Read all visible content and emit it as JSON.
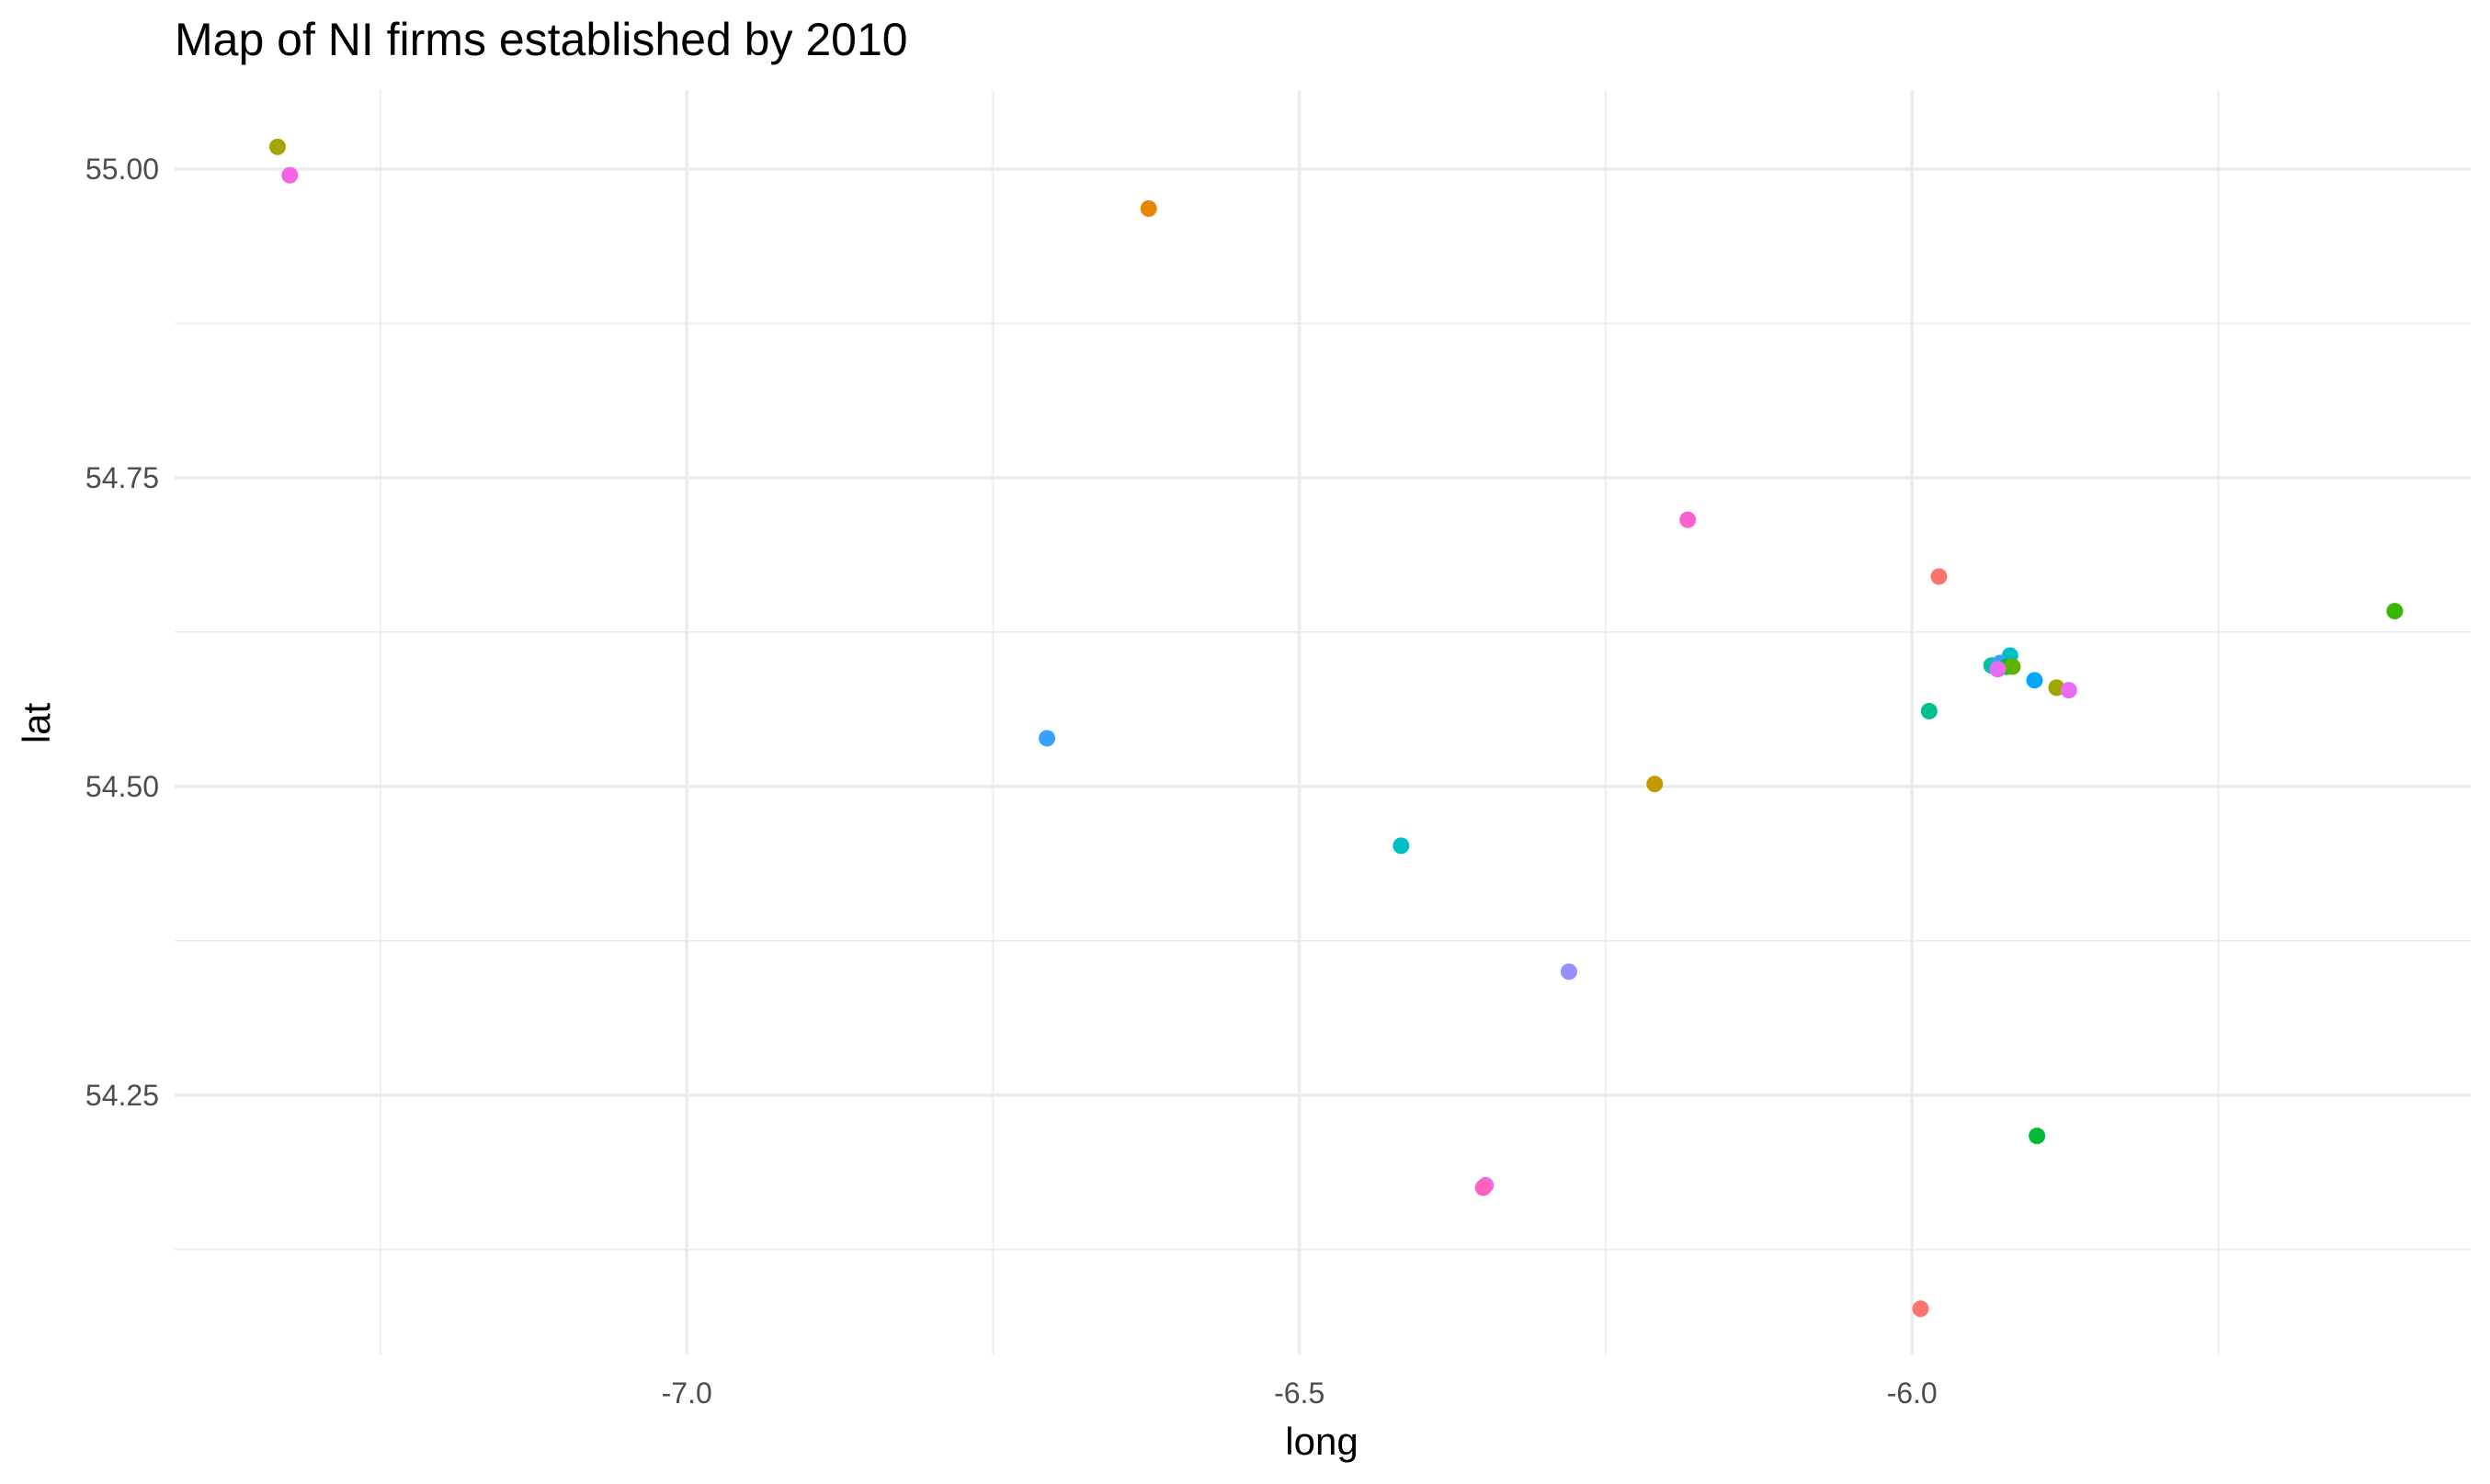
{
  "chart_data": {
    "type": "scatter",
    "title": "Map of NI firms established by 2010",
    "xlabel": "long",
    "ylabel": "lat",
    "xlim": [
      -7.418,
      -5.544
    ],
    "ylim": [
      54.04,
      55.064
    ],
    "x_ticks": [
      {
        "value": -7.0,
        "label": "-7.0"
      },
      {
        "value": -6.5,
        "label": "-6.5"
      },
      {
        "value": -6.0,
        "label": "-6.0"
      }
    ],
    "y_ticks": [
      {
        "value": 54.25,
        "label": "54.25"
      },
      {
        "value": 54.5,
        "label": "54.50"
      },
      {
        "value": 54.75,
        "label": "54.75"
      },
      {
        "value": 55.0,
        "label": "55.00"
      }
    ],
    "x_minor": [
      -7.25,
      -6.75,
      -6.25,
      -5.75
    ],
    "y_minor": [
      54.125,
      54.375,
      54.625,
      54.875
    ],
    "grid": true,
    "legend": "none",
    "points": [
      {
        "x": -7.334,
        "y": 55.018,
        "color": "#a3a500"
      },
      {
        "x": -7.324,
        "y": 54.995,
        "color": "#f564e3"
      },
      {
        "x": -6.623,
        "y": 54.968,
        "color": "#e58700"
      },
      {
        "x": -6.183,
        "y": 54.716,
        "color": "#fd61d1"
      },
      {
        "x": -5.978,
        "y": 54.67,
        "color": "#f8766d"
      },
      {
        "x": -5.606,
        "y": 54.642,
        "color": "#39b600"
      },
      {
        "x": -5.92,
        "y": 54.606,
        "color": "#00bfc4"
      },
      {
        "x": -5.935,
        "y": 54.598,
        "color": "#00c1a3"
      },
      {
        "x": -5.928,
        "y": 54.6,
        "color": "#35a2ff"
      },
      {
        "x": -5.923,
        "y": 54.597,
        "color": "#00ba38"
      },
      {
        "x": -5.918,
        "y": 54.597,
        "color": "#5eb300"
      },
      {
        "x": -5.93,
        "y": 54.595,
        "color": "#e76bf3"
      },
      {
        "x": -5.9,
        "y": 54.586,
        "color": "#00a9ff"
      },
      {
        "x": -5.882,
        "y": 54.58,
        "color": "#9da700"
      },
      {
        "x": -5.872,
        "y": 54.578,
        "color": "#e76bf3"
      },
      {
        "x": -5.986,
        "y": 54.561,
        "color": "#00c08b"
      },
      {
        "x": -6.706,
        "y": 54.539,
        "color": "#35a2ff"
      },
      {
        "x": -6.21,
        "y": 54.502,
        "color": "#c49a00"
      },
      {
        "x": -6.417,
        "y": 54.452,
        "color": "#00bfc4"
      },
      {
        "x": -6.28,
        "y": 54.35,
        "color": "#9590ff"
      },
      {
        "x": -5.898,
        "y": 54.217,
        "color": "#00ba38"
      },
      {
        "x": -6.348,
        "y": 54.177,
        "color": "#e76bf3"
      },
      {
        "x": -6.35,
        "y": 54.175,
        "color": "#ff62bc"
      },
      {
        "x": -5.993,
        "y": 54.077,
        "color": "#f8766d"
      }
    ]
  }
}
